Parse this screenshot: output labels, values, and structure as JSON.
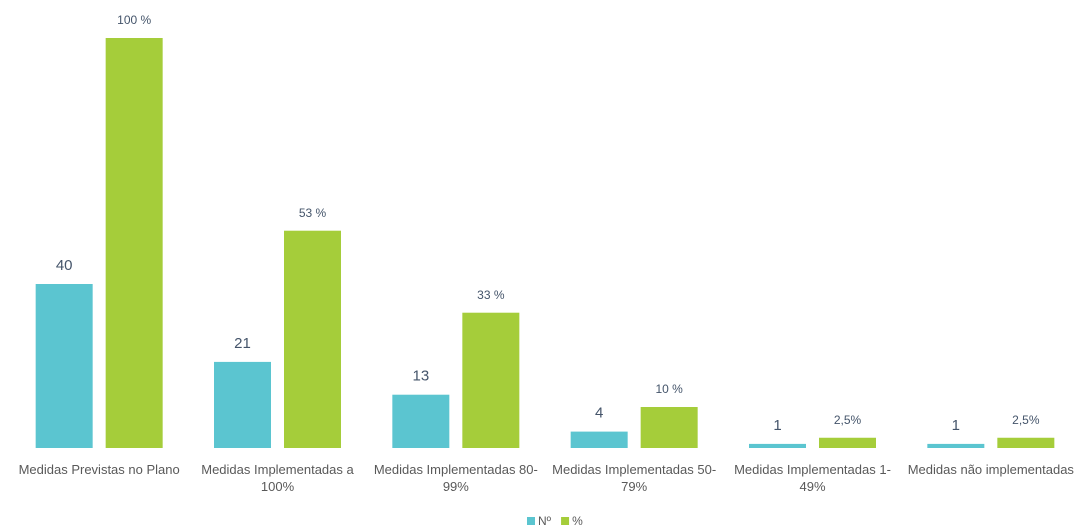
{
  "chart_data": {
    "type": "bar",
    "categories": [
      "Medidas Previstas no Plano",
      "Medidas Implementadas a 100%",
      "Medidas Implementadas 80-99%",
      "Medidas Implementadas 50-79%",
      "Medidas Implementadas 1-49%",
      "Medidas não implementadas"
    ],
    "series": [
      {
        "name": "Nº",
        "color": "#5bc5d0",
        "values": [
          40,
          21,
          13,
          4,
          1,
          1
        ]
      },
      {
        "name": "%",
        "color": "#a5cd3a",
        "values": [
          100,
          53,
          33,
          10,
          2.5,
          2.5
        ],
        "value_labels": [
          "100 %",
          "53 %",
          "33 %",
          "10 %",
          "2,5%",
          "2,5%"
        ]
      }
    ],
    "ylim": [
      0,
      100
    ]
  }
}
